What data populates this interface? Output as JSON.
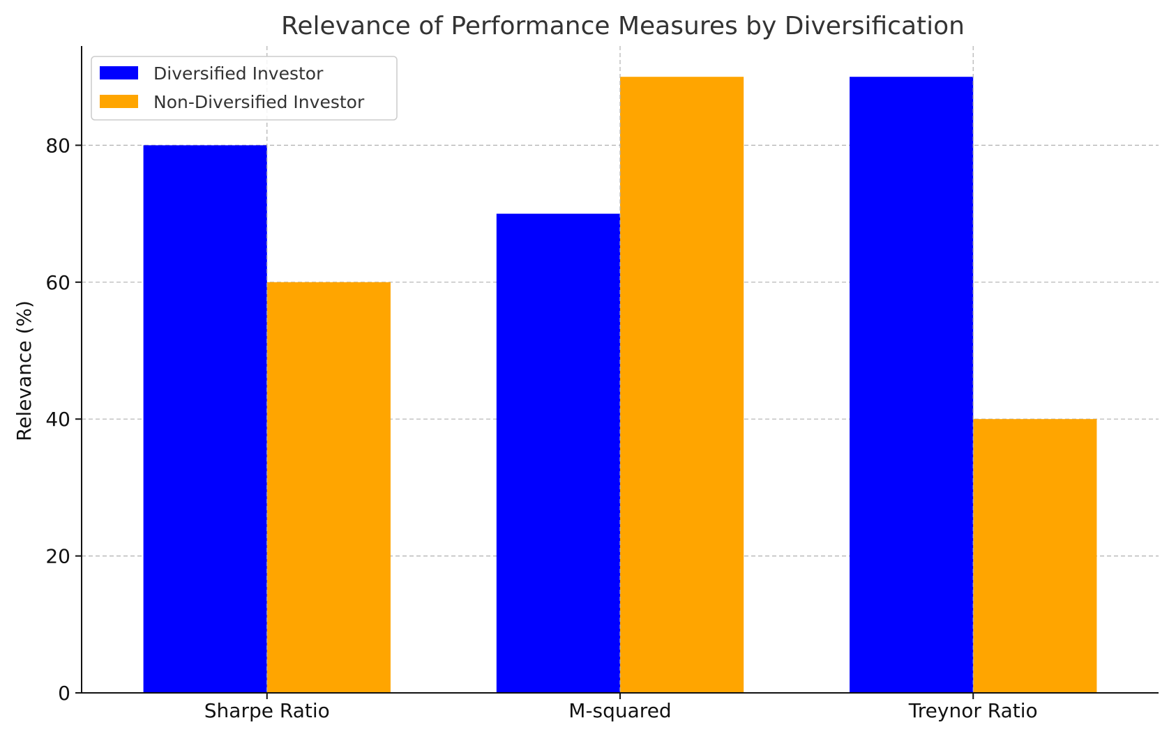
{
  "chart_data": {
    "type": "bar",
    "title": "Relevance of Performance Measures by Diversification",
    "xlabel": "",
    "ylabel": "Relevance (%)",
    "categories": [
      "Sharpe Ratio",
      "M-squared",
      "Treynor Ratio"
    ],
    "series": [
      {
        "name": "Diversified Investor",
        "values": [
          80,
          70,
          90
        ],
        "color": "#0000ff"
      },
      {
        "name": "Non-Diversified Investor",
        "values": [
          60,
          90,
          40
        ],
        "color": "#ffa500"
      }
    ],
    "ylim": [
      0,
      94.5
    ],
    "yticks": [
      0,
      20,
      40,
      60,
      80
    ],
    "grid": true,
    "legend_position": "top-left"
  }
}
